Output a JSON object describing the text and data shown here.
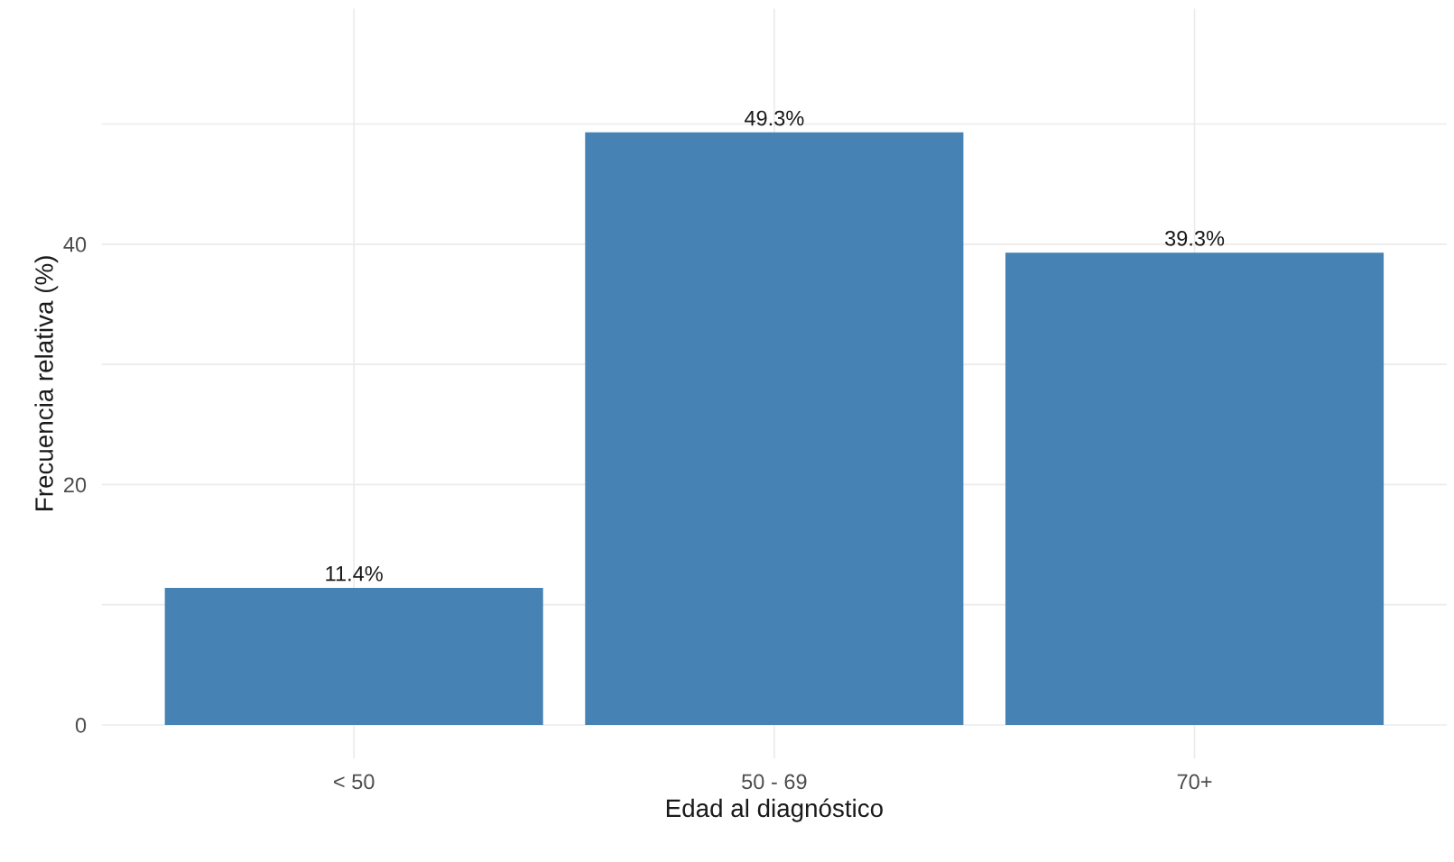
{
  "chart_data": {
    "type": "bar",
    "xlabel": "Edad al diagnóstico",
    "ylabel": "Frecuencia relativa (%)",
    "categories": [
      "< 50",
      "50 - 69",
      "70+"
    ],
    "values": [
      11.4,
      49.3,
      39.3
    ],
    "value_labels": [
      "11.4%",
      "49.3%",
      "39.3%"
    ],
    "color": "#4682b4",
    "ylim": [
      -2.8,
      59.6
    ],
    "yticks": [
      0,
      {
        "value": 10,
        "label": null
      },
      20,
      {
        "value": 30,
        "label": null
      },
      40,
      {
        "value": 50,
        "label": null
      }
    ],
    "grid": true
  }
}
